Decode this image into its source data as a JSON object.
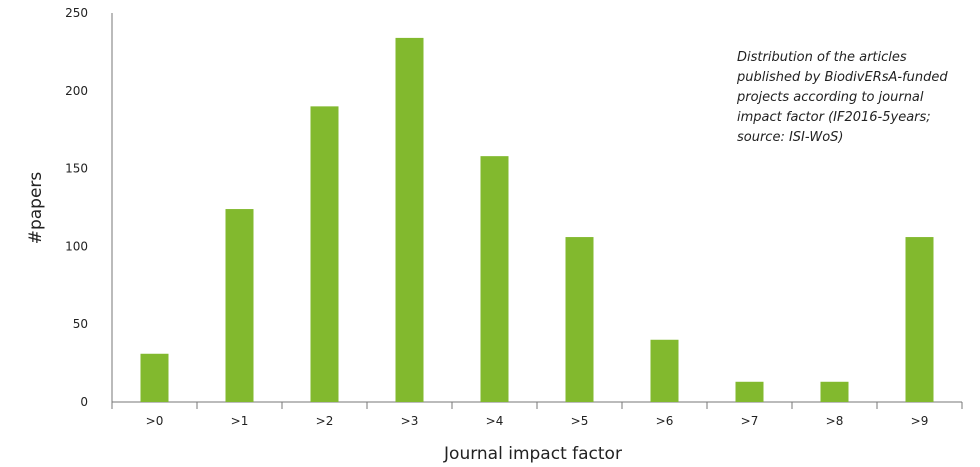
{
  "chart_data": {
    "type": "bar",
    "categories": [
      ">0",
      ">1",
      ">2",
      ">3",
      ">4",
      ">5",
      ">6",
      ">7",
      ">8",
      ">9"
    ],
    "values": [
      31,
      124,
      190,
      234,
      158,
      106,
      40,
      13,
      13,
      106
    ],
    "xlabel": "Journal impact factor",
    "ylabel": "#papers",
    "ylim": [
      0,
      250
    ],
    "yticks": [
      0,
      50,
      100,
      150,
      200,
      250
    ],
    "grid": false,
    "bar_color": "#82b92e",
    "annotation_lines": [
      "Distribution of the articles",
      "published by BiodivERsA-funded",
      "projects according to journal",
      "impact factor (IF2016-5years;",
      "source: ISI-WoS)"
    ]
  }
}
